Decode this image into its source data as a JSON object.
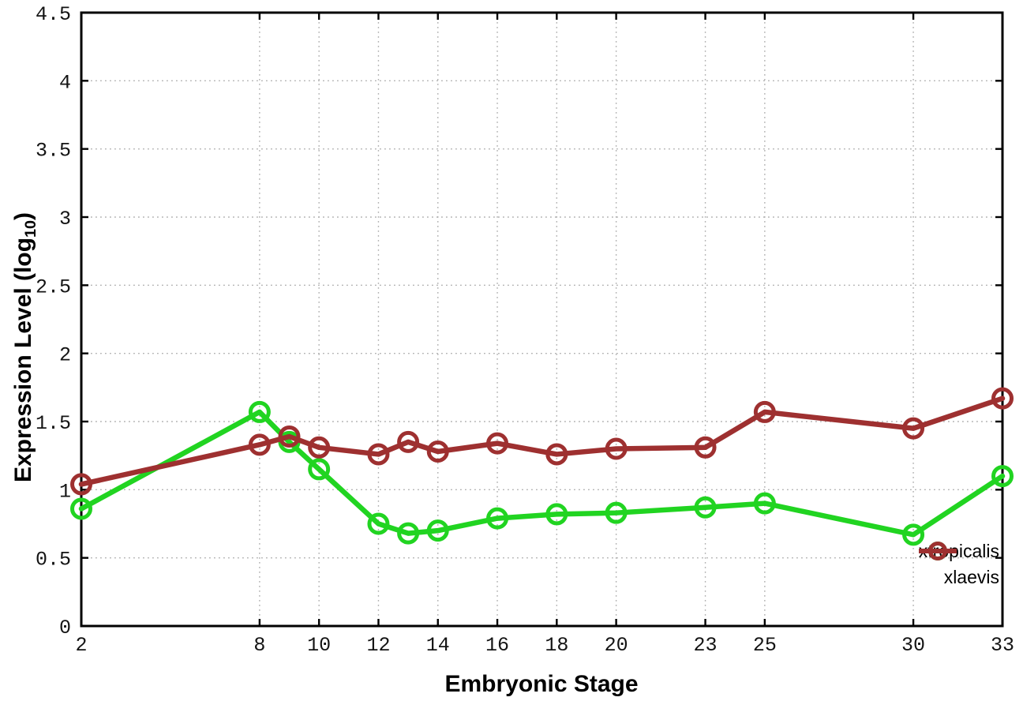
{
  "page": {
    "background": "#ffffff",
    "description": "Gene expression profile line chart"
  },
  "chart_data": {
    "type": "line",
    "title": "",
    "xlabel": "Embryonic Stage",
    "ylabel": {
      "main": "Expression Level (log",
      "sub": "10",
      "close": ")"
    },
    "xlim": [
      2,
      33
    ],
    "ylim": [
      0,
      4.5
    ],
    "grid": true,
    "legend_position": "inside-right-bottom",
    "x": [
      2,
      8,
      9,
      10,
      12,
      13,
      14,
      16,
      18,
      20,
      23,
      25,
      30,
      33
    ],
    "xticks": [
      {
        "v": 2,
        "label": "2"
      },
      {
        "v": 8,
        "label": "8"
      },
      {
        "v": 10,
        "label": "10"
      },
      {
        "v": 12,
        "label": "12"
      },
      {
        "v": 14,
        "label": "14"
      },
      {
        "v": 16,
        "label": "16"
      },
      {
        "v": 18,
        "label": "18"
      },
      {
        "v": 20,
        "label": "20"
      },
      {
        "v": 23,
        "label": "23"
      },
      {
        "v": 25,
        "label": "25"
      },
      {
        "v": 30,
        "label": "30"
      },
      {
        "v": 33,
        "label": "33"
      }
    ],
    "yticks": [
      {
        "v": 0,
        "label": "0"
      },
      {
        "v": 0.5,
        "label": "0.5"
      },
      {
        "v": 1,
        "label": "1"
      },
      {
        "v": 1.5,
        "label": "1.5"
      },
      {
        "v": 2,
        "label": "2"
      },
      {
        "v": 2.5,
        "label": "2.5"
      },
      {
        "v": 3,
        "label": "3"
      },
      {
        "v": 3.5,
        "label": "3.5"
      },
      {
        "v": 4,
        "label": "4"
      },
      {
        "v": 4.5,
        "label": "4.5"
      }
    ],
    "series": [
      {
        "name": "xtropicalis",
        "color": "#21d421",
        "marker": "open-circle",
        "values": [
          0.86,
          1.57,
          1.35,
          1.15,
          0.75,
          0.68,
          0.7,
          0.79,
          0.82,
          0.83,
          0.87,
          0.9,
          0.67,
          1.1
        ]
      },
      {
        "name": "xlaevis",
        "color": "#9e3030",
        "marker": "open-circle",
        "values": [
          1.04,
          1.33,
          1.39,
          1.31,
          1.26,
          1.35,
          1.28,
          1.34,
          1.26,
          1.3,
          1.31,
          1.57,
          1.45,
          1.67
        ]
      }
    ]
  }
}
